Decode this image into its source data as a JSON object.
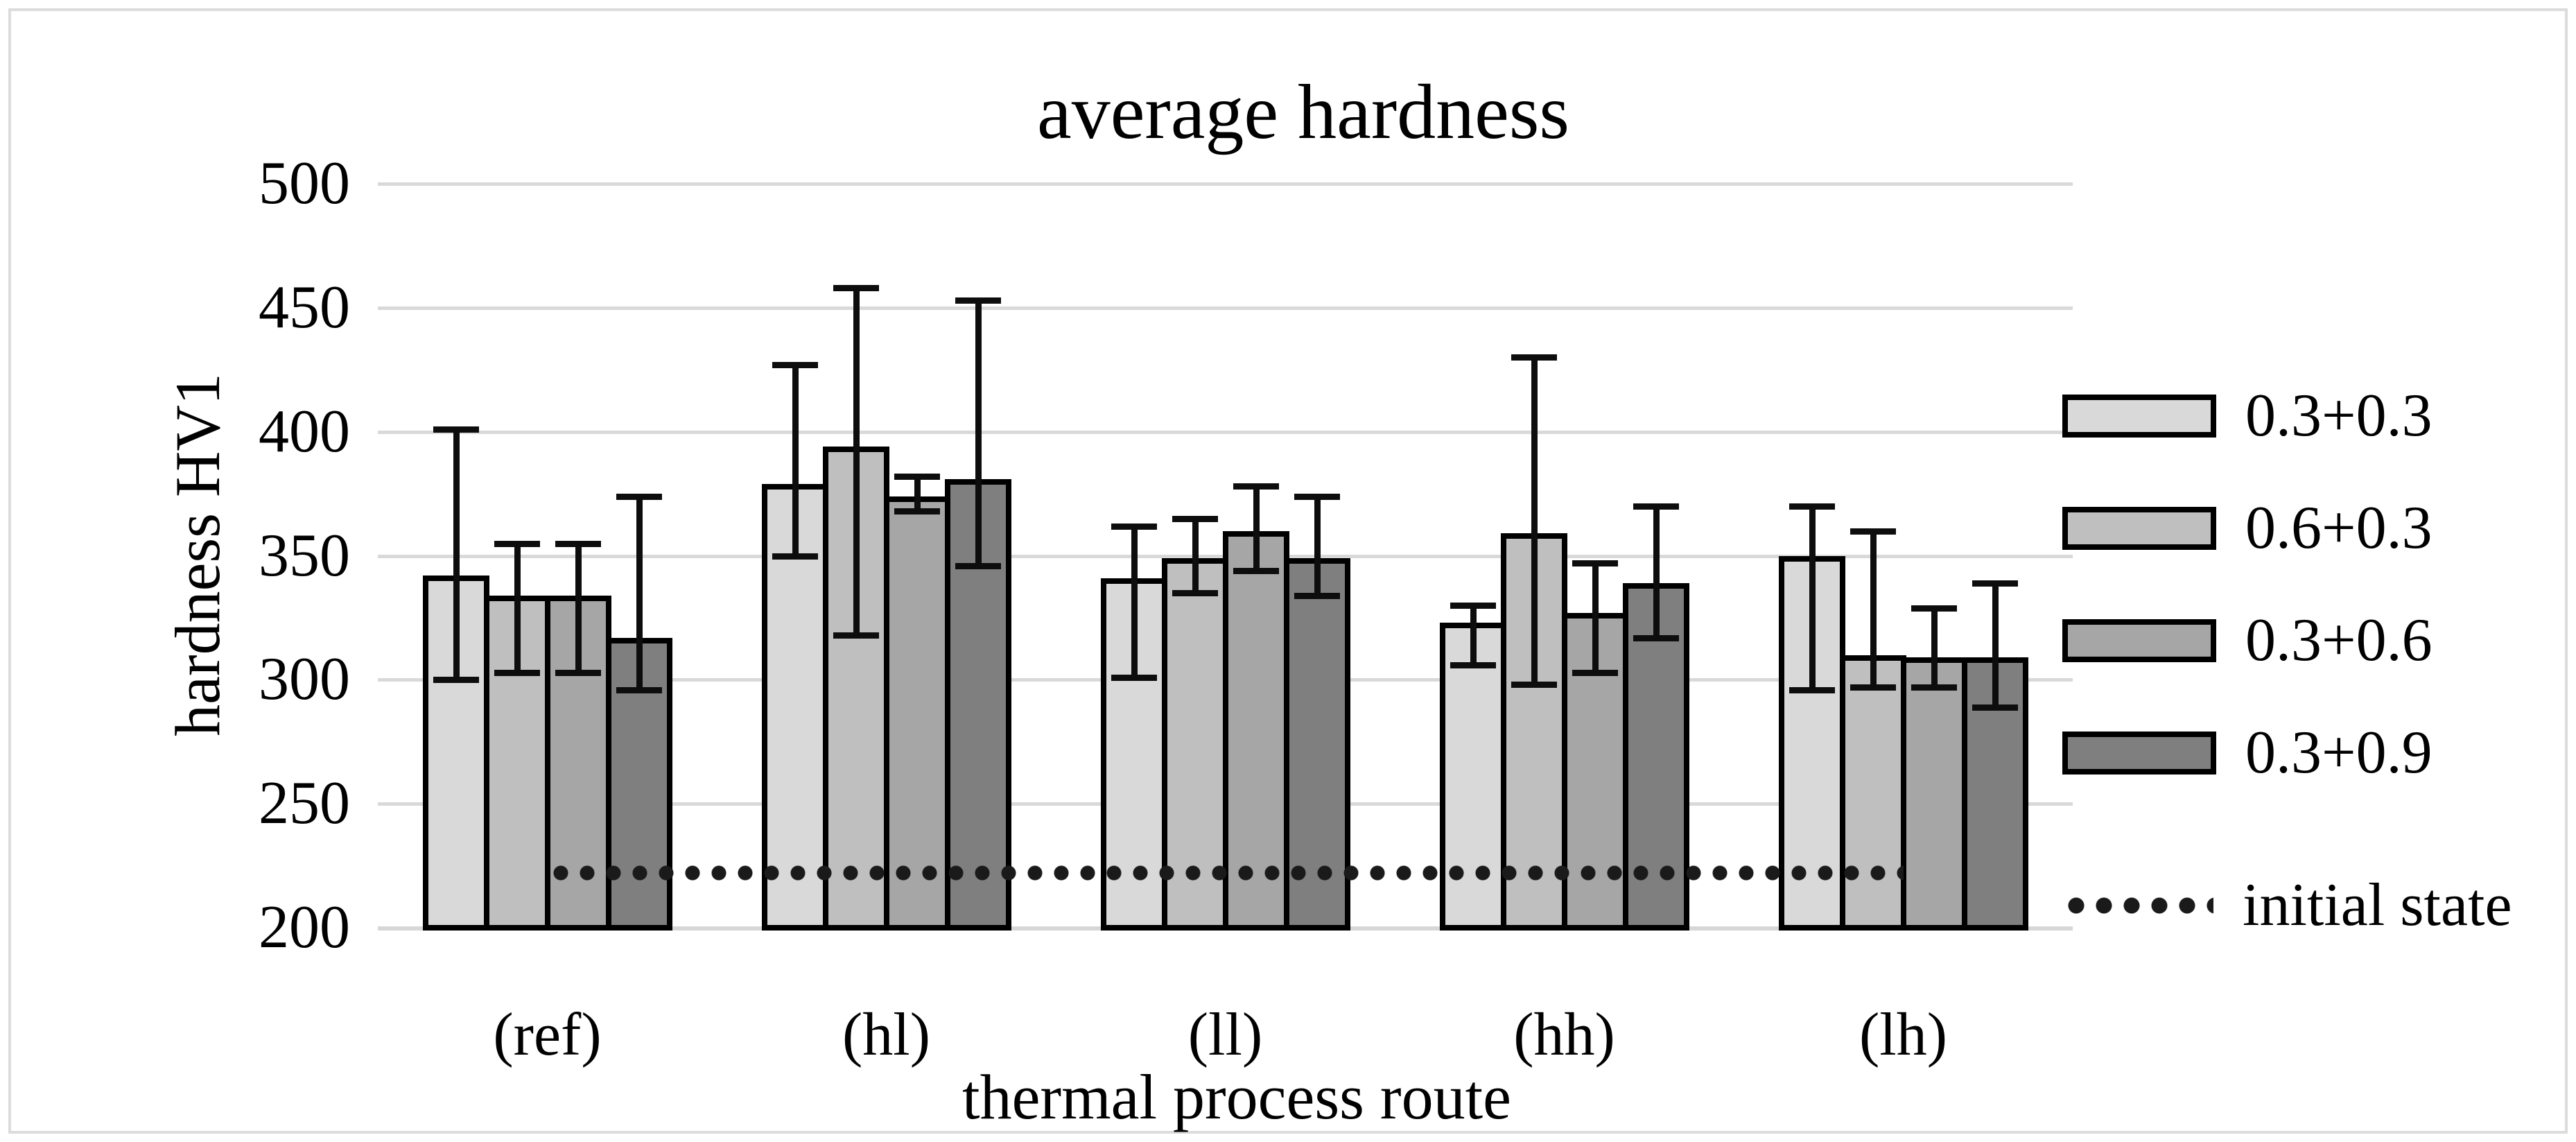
{
  "figure": {
    "title": "average hardness",
    "background": "#ffffff",
    "border_color": "#dcdcdc"
  },
  "chart_data": {
    "type": "bar",
    "title": "average hardness",
    "xlabel": "thermal process route",
    "ylabel": "hardness HV1",
    "categories": [
      "(ref)",
      "(hl)",
      "(ll)",
      "(hh)",
      "(lh)"
    ],
    "y_ticks": [
      200,
      250,
      300,
      350,
      400,
      450,
      500
    ],
    "ylim": [
      200,
      500
    ],
    "grid": "horizontal",
    "legend_position": "right",
    "series": [
      {
        "name": "0.3+0.3",
        "color": "#d9d9d9",
        "values": [
          342,
          379,
          341,
          323,
          350
        ],
        "error_high": [
          401,
          427,
          362,
          330,
          370
        ],
        "error_low": [
          300,
          350,
          301,
          306,
          296
        ]
      },
      {
        "name": "0.6+0.3",
        "color": "#bfbfbf",
        "values": [
          334,
          394,
          349,
          359,
          310
        ],
        "error_high": [
          355,
          458,
          365,
          430,
          360
        ],
        "error_low": [
          303,
          318,
          335,
          298,
          297
        ]
      },
      {
        "name": "0.3+0.6",
        "color": "#a6a6a6",
        "values": [
          334,
          374,
          360,
          327,
          309
        ],
        "error_high": [
          355,
          382,
          378,
          347,
          329
        ],
        "error_low": [
          303,
          368,
          344,
          303,
          297
        ]
      },
      {
        "name": "0.3+0.9",
        "color": "#7f7f7f",
        "values": [
          317,
          381,
          349,
          339,
          309
        ],
        "error_high": [
          374,
          453,
          374,
          370,
          339
        ],
        "error_low": [
          296,
          346,
          334,
          317,
          289
        ]
      }
    ],
    "reference_line": {
      "label": "initial state",
      "value": 222,
      "style": "dotted",
      "color": "#1a1a1a"
    }
  },
  "colors": {
    "bar_border": "#000000",
    "gridline": "#d9d9d9",
    "axis_line": "#d7d7d7",
    "text": "#000000"
  }
}
